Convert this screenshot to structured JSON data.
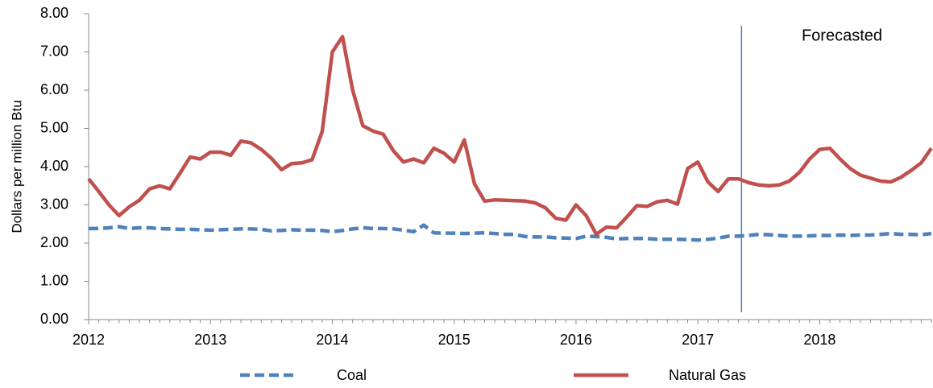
{
  "chart_data": {
    "type": "line",
    "y_label": "Dollars per million Btu",
    "categories": [
      "2012",
      null,
      null,
      null,
      null,
      null,
      null,
      null,
      null,
      null,
      null,
      null,
      "2013",
      null,
      null,
      null,
      null,
      null,
      null,
      null,
      null,
      null,
      null,
      null,
      "2014",
      null,
      null,
      null,
      null,
      null,
      null,
      null,
      null,
      null,
      null,
      null,
      "2015",
      null,
      null,
      null,
      null,
      null,
      null,
      null,
      null,
      null,
      null,
      null,
      "2016",
      null,
      null,
      null,
      null,
      null,
      null,
      null,
      null,
      null,
      null,
      null,
      "2017",
      null,
      null,
      null,
      null,
      null,
      null,
      null,
      null,
      null,
      null,
      null,
      "2018",
      null,
      null,
      null,
      null,
      null,
      null,
      null,
      null,
      null,
      null,
      null
    ],
    "series": [
      {
        "name": "Coal",
        "color": "#4f81bd",
        "dashed": true,
        "values": [
          2.38,
          2.38,
          2.4,
          2.43,
          2.38,
          2.4,
          2.4,
          2.38,
          2.37,
          2.36,
          2.36,
          2.35,
          2.34,
          2.35,
          2.36,
          2.37,
          2.37,
          2.36,
          2.32,
          2.33,
          2.35,
          2.34,
          2.34,
          2.33,
          2.3,
          2.33,
          2.37,
          2.4,
          2.38,
          2.38,
          2.37,
          2.34,
          2.3,
          2.47,
          2.27,
          2.26,
          2.26,
          2.25,
          2.26,
          2.27,
          2.25,
          2.23,
          2.23,
          2.17,
          2.16,
          2.16,
          2.14,
          2.13,
          2.12,
          2.18,
          2.17,
          2.15,
          2.11,
          2.12,
          2.12,
          2.12,
          2.1,
          2.1,
          2.1,
          2.09,
          2.08,
          2.1,
          2.13,
          2.18,
          2.18,
          2.2,
          2.23,
          2.22,
          2.2,
          2.18,
          2.18,
          2.19,
          2.2,
          2.2,
          2.21,
          2.2,
          2.21,
          2.21,
          2.23,
          2.25,
          2.23,
          2.23,
          2.22,
          2.25
        ]
      },
      {
        "name": "Natural Gas",
        "color": "#c0504d",
        "dashed": false,
        "values": [
          3.68,
          3.35,
          3.0,
          2.72,
          2.95,
          3.12,
          3.42,
          3.5,
          3.42,
          3.83,
          4.25,
          4.2,
          4.38,
          4.38,
          4.3,
          4.67,
          4.62,
          4.45,
          4.22,
          3.92,
          4.08,
          4.1,
          4.18,
          4.92,
          7.0,
          7.4,
          6.0,
          5.07,
          4.93,
          4.85,
          4.42,
          4.12,
          4.2,
          4.1,
          4.48,
          4.35,
          4.12,
          4.7,
          3.55,
          3.1,
          3.13,
          3.12,
          3.11,
          3.1,
          3.05,
          2.92,
          2.65,
          2.6,
          3.0,
          2.72,
          2.23,
          2.42,
          2.4,
          2.68,
          2.98,
          2.96,
          3.08,
          3.12,
          3.02,
          3.95,
          4.12,
          3.6,
          3.35,
          3.68,
          3.68,
          3.58,
          3.52,
          3.5,
          3.52,
          3.62,
          3.85,
          4.2,
          4.45,
          4.48,
          4.2,
          3.95,
          3.78,
          3.7,
          3.62,
          3.6,
          3.72,
          3.9,
          4.1,
          4.48
        ]
      }
    ],
    "ylim": [
      0,
      8
    ],
    "yticks": [
      {
        "value": 0,
        "label": "0.00"
      },
      {
        "value": 1,
        "label": "1.00"
      },
      {
        "value": 2,
        "label": "2.00"
      },
      {
        "value": 3,
        "label": "3.00"
      },
      {
        "value": 4,
        "label": "4.00"
      },
      {
        "value": 5,
        "label": "5.00"
      },
      {
        "value": 6,
        "label": "6.00"
      },
      {
        "value": 7,
        "label": "7.00"
      },
      {
        "value": 8,
        "label": "8.00"
      }
    ],
    "grid": false,
    "legend": "bottom",
    "annotations": [
      {
        "text": "Forecasted",
        "x_index": 64.3
      }
    ]
  }
}
